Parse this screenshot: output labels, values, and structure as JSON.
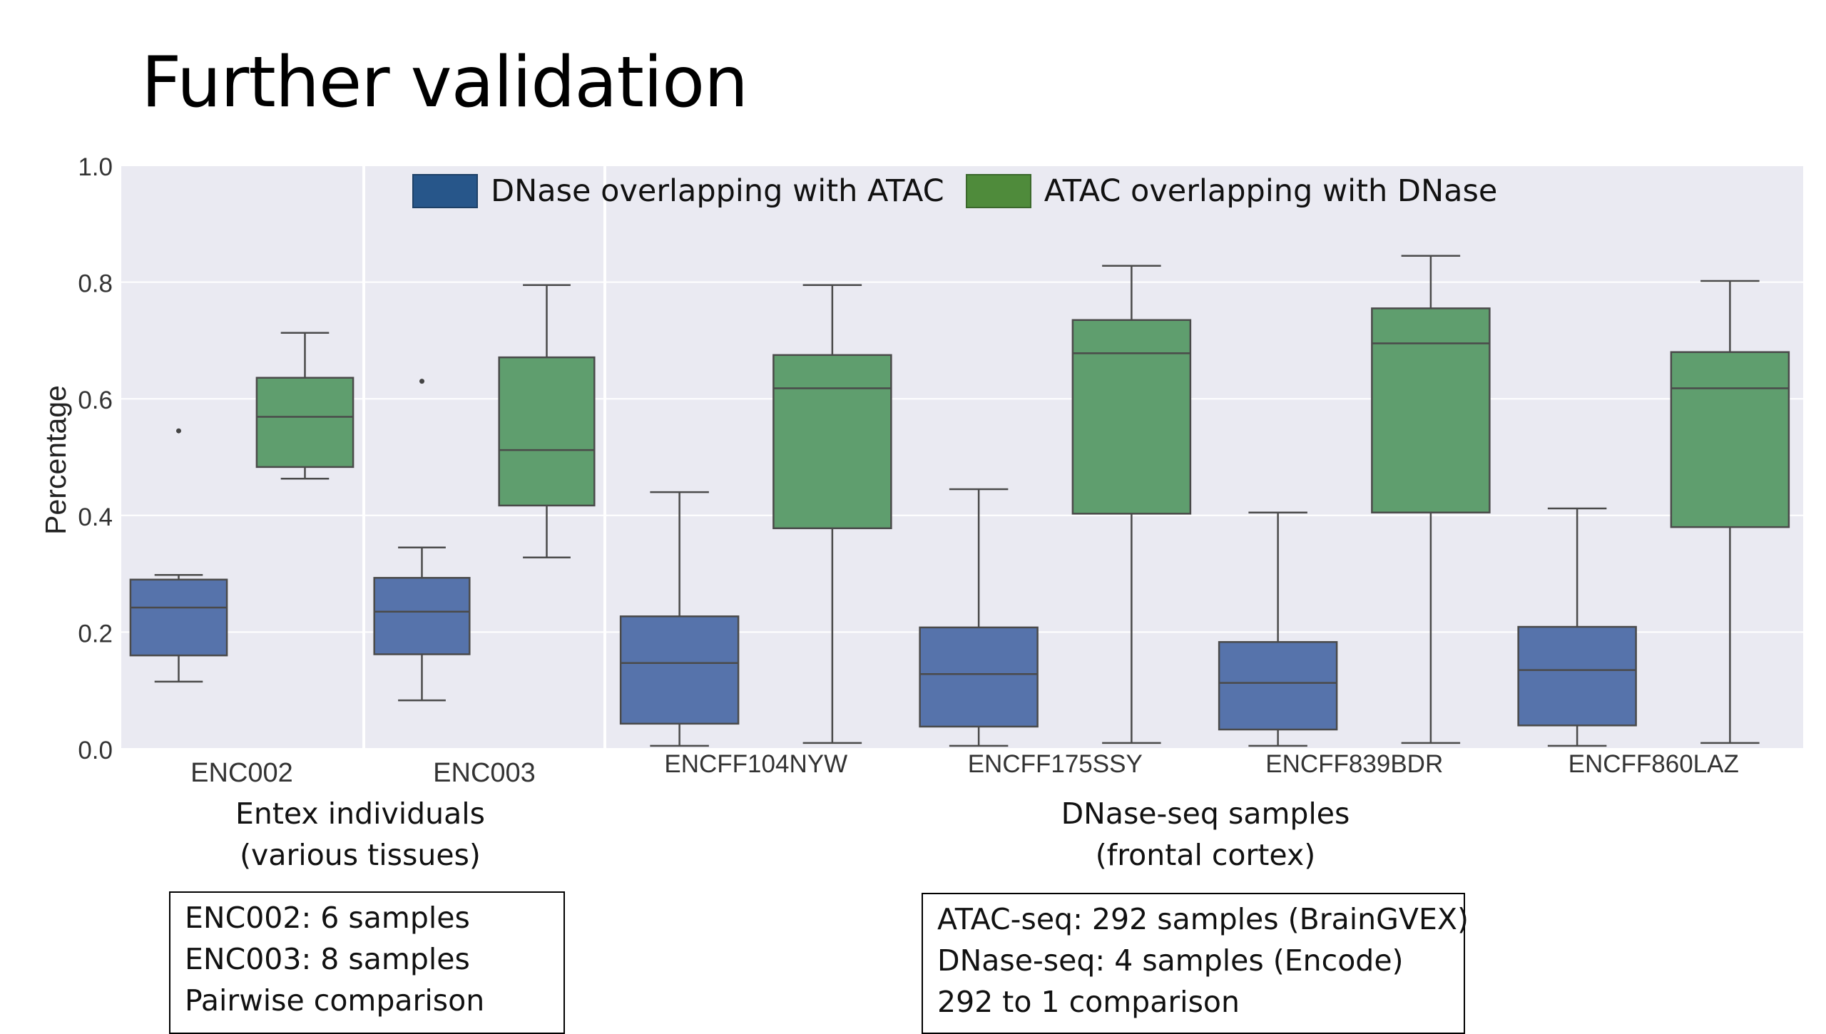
{
  "slide": {
    "title": "Further validation"
  },
  "chart_data": {
    "type": "box",
    "ylabel": "Percentage",
    "ylim": [
      0.0,
      1.0
    ],
    "yticks": [
      "0.0",
      "0.2",
      "0.4",
      "0.6",
      "0.8",
      "1.0"
    ],
    "grid": true,
    "legend_position": "top",
    "series": [
      {
        "name": "DNase overlapping with ATAC",
        "color": "#5673ab",
        "legend_color": "#27568a"
      },
      {
        "name": "ATAC overlapping with DNase",
        "color": "#5f9e6e",
        "legend_color": "#4f8b3b"
      }
    ],
    "panels": [
      {
        "group_label": [
          "Entex individuals",
          "(various tissues)"
        ],
        "categories": [
          {
            "label": "ENC002",
            "boxes": [
              {
                "series": 0,
                "whisker_low": 0.115,
                "q1": 0.16,
                "median": 0.242,
                "q3": 0.29,
                "whisker_high": 0.298,
                "outliers": [
                  0.545
                ]
              },
              {
                "series": 1,
                "whisker_low": 0.463,
                "q1": 0.483,
                "median": 0.569,
                "q3": 0.636,
                "whisker_high": 0.713,
                "outliers": []
              }
            ]
          }
        ]
      },
      {
        "group_label": [],
        "categories": [
          {
            "label": "ENC003",
            "boxes": [
              {
                "series": 0,
                "whisker_low": 0.083,
                "q1": 0.162,
                "median": 0.235,
                "q3": 0.293,
                "whisker_high": 0.345,
                "outliers": [
                  0.63
                ]
              },
              {
                "series": 1,
                "whisker_low": 0.328,
                "q1": 0.417,
                "median": 0.512,
                "q3": 0.671,
                "whisker_high": 0.795,
                "outliers": []
              }
            ]
          }
        ]
      },
      {
        "group_label": [
          "DNase-seq samples",
          "(frontal cortex)"
        ],
        "categories": [
          {
            "label": "ENCFF104NYW",
            "boxes": [
              {
                "series": 0,
                "whisker_low": 0.005,
                "q1": 0.043,
                "median": 0.147,
                "q3": 0.227,
                "whisker_high": 0.44,
                "outliers": []
              },
              {
                "series": 1,
                "whisker_low": 0.01,
                "q1": 0.378,
                "median": 0.618,
                "q3": 0.675,
                "whisker_high": 0.795,
                "outliers": []
              }
            ]
          },
          {
            "label": "ENCFF175SSY",
            "boxes": [
              {
                "series": 0,
                "whisker_low": 0.005,
                "q1": 0.038,
                "median": 0.128,
                "q3": 0.208,
                "whisker_high": 0.445,
                "outliers": []
              },
              {
                "series": 1,
                "whisker_low": 0.01,
                "q1": 0.403,
                "median": 0.678,
                "q3": 0.735,
                "whisker_high": 0.828,
                "outliers": []
              }
            ]
          },
          {
            "label": "ENCFF839BDR",
            "boxes": [
              {
                "series": 0,
                "whisker_low": 0.005,
                "q1": 0.033,
                "median": 0.113,
                "q3": 0.183,
                "whisker_high": 0.405,
                "outliers": []
              },
              {
                "series": 1,
                "whisker_low": 0.01,
                "q1": 0.405,
                "median": 0.695,
                "q3": 0.755,
                "whisker_high": 0.845,
                "outliers": []
              }
            ]
          },
          {
            "label": "ENCFF860LAZ",
            "boxes": [
              {
                "series": 0,
                "whisker_low": 0.005,
                "q1": 0.04,
                "median": 0.135,
                "q3": 0.209,
                "whisker_high": 0.412,
                "outliers": []
              },
              {
                "series": 1,
                "whisker_low": 0.01,
                "q1": 0.38,
                "median": 0.618,
                "q3": 0.68,
                "whisker_high": 0.802,
                "outliers": []
              }
            ]
          }
        ]
      }
    ]
  },
  "info_boxes": [
    {
      "lines": [
        "ENC002: 6 samples",
        "ENC003: 8 samples",
        "Pairwise comparison"
      ]
    },
    {
      "lines": [
        "ATAC-seq: 292 samples (BrainGVEX)",
        "DNase-seq: 4 samples (Encode)",
        "292 to 1 comparison"
      ]
    }
  ]
}
